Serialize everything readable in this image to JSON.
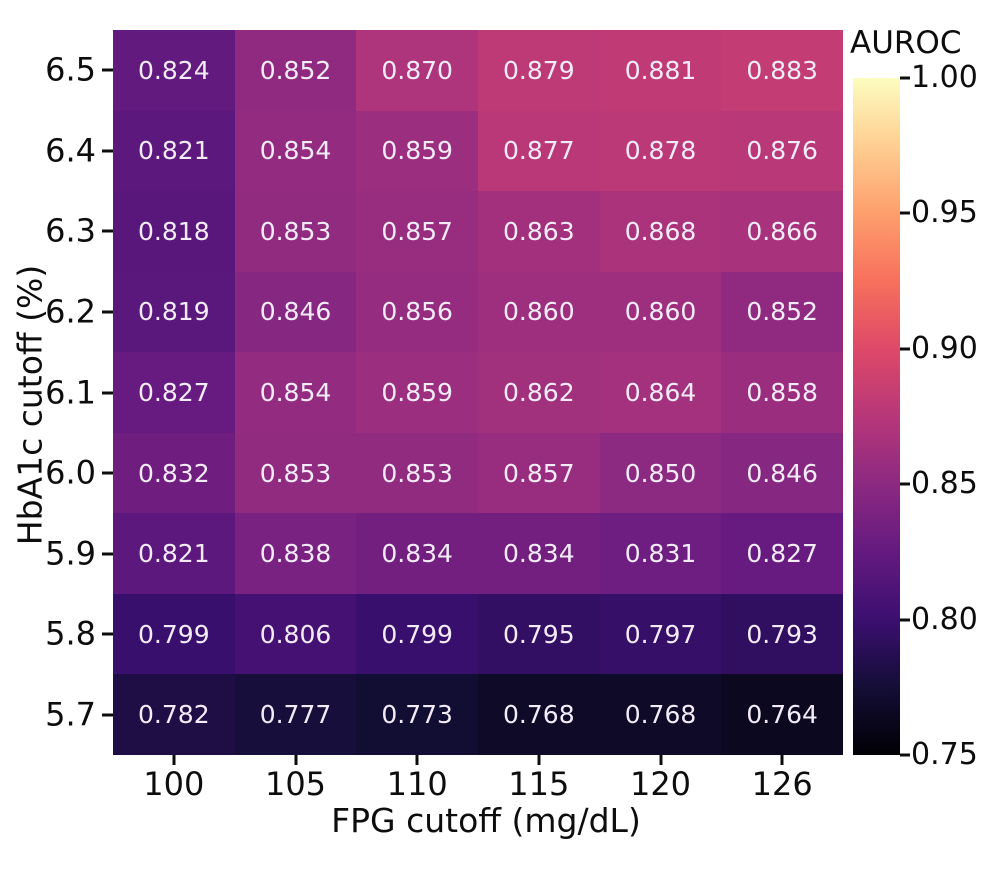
{
  "figure": {
    "background": "#ffffff",
    "text_color": "#0d0d0d",
    "annotation_text_color": "#f3ecf8"
  },
  "chart_data": {
    "type": "heatmap",
    "title": "",
    "xlabel": "FPG cutoff (mg/dL)",
    "ylabel": "HbA1c cutoff (%)",
    "x_categories": [
      "100",
      "105",
      "110",
      "115",
      "120",
      "126"
    ],
    "y_categories": [
      "6.5",
      "6.4",
      "6.3",
      "6.2",
      "6.1",
      "6.0",
      "5.9",
      "5.8",
      "5.7"
    ],
    "values": [
      [
        0.824,
        0.852,
        0.87,
        0.879,
        0.881,
        0.883
      ],
      [
        0.821,
        0.854,
        0.859,
        0.877,
        0.878,
        0.876
      ],
      [
        0.818,
        0.853,
        0.857,
        0.863,
        0.868,
        0.866
      ],
      [
        0.819,
        0.846,
        0.856,
        0.86,
        0.86,
        0.852
      ],
      [
        0.827,
        0.854,
        0.859,
        0.862,
        0.864,
        0.858
      ],
      [
        0.832,
        0.853,
        0.853,
        0.857,
        0.85,
        0.846
      ],
      [
        0.821,
        0.838,
        0.834,
        0.834,
        0.831,
        0.827
      ],
      [
        0.799,
        0.806,
        0.799,
        0.795,
        0.797,
        0.793
      ],
      [
        0.782,
        0.777,
        0.773,
        0.768,
        0.768,
        0.764
      ]
    ],
    "value_format_decimals": 3,
    "grid": false,
    "legend_position": "right",
    "colorbar": {
      "label": "AUROC",
      "vmin": 0.75,
      "vmax": 1.0,
      "tick_labels": [
        "1.00",
        "0.95",
        "0.90",
        "0.85",
        "0.80",
        "0.75"
      ]
    },
    "colormap": {
      "name": "magma",
      "anchors": [
        "#000004",
        "#140e36",
        "#3b0f70",
        "#641a80",
        "#8c2981",
        "#b73779",
        "#de4968",
        "#f7705c",
        "#fe9f6d",
        "#fece91",
        "#fcfdbf"
      ]
    }
  }
}
